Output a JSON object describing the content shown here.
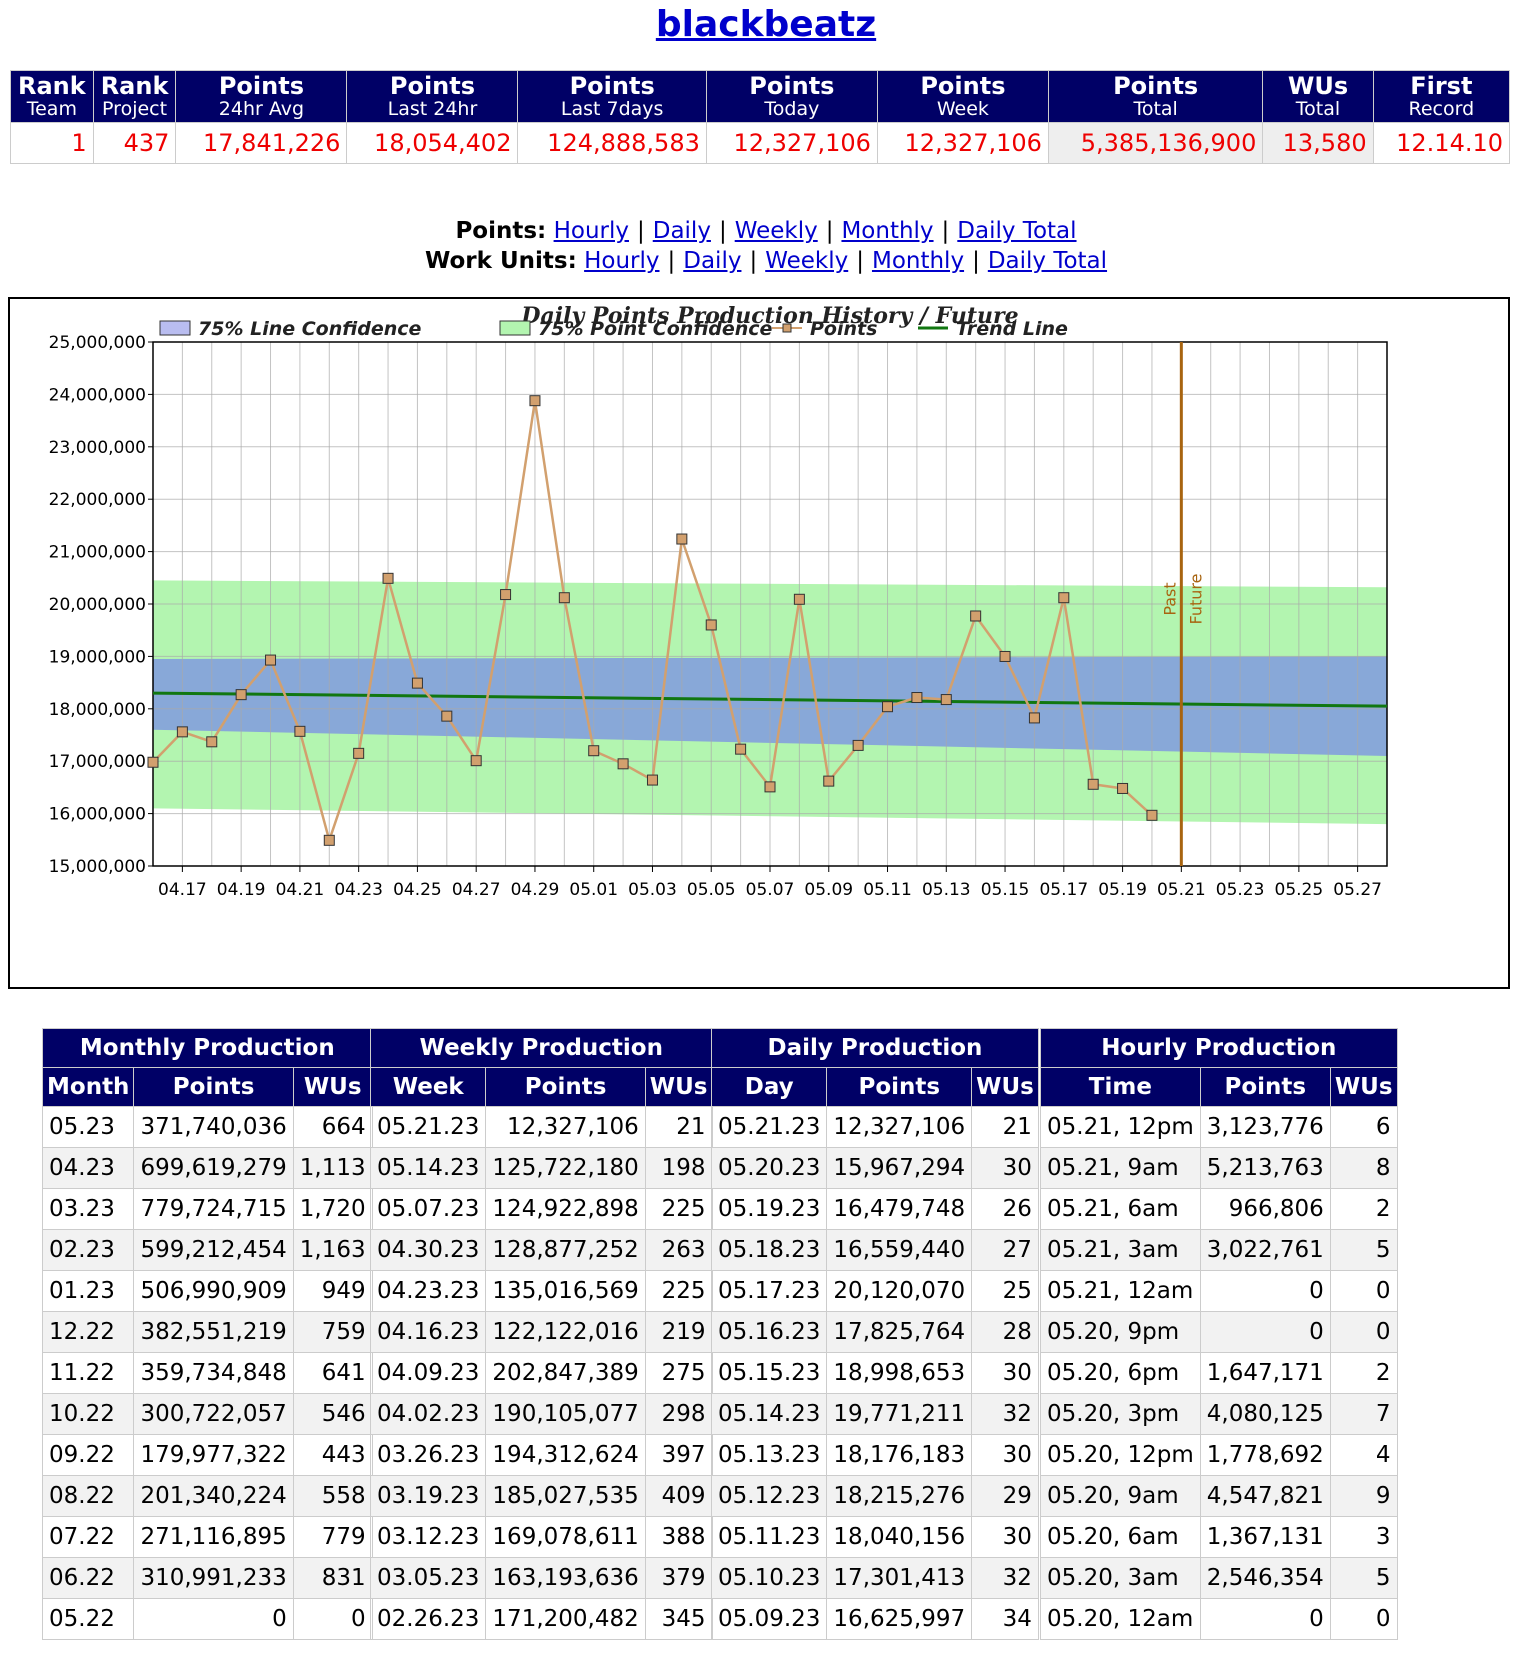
{
  "page": {
    "title": "blackbeatz"
  },
  "summary": {
    "headers": [
      [
        "Rank",
        "Team"
      ],
      [
        "Rank",
        "Project"
      ],
      [
        "Points",
        "24hr Avg"
      ],
      [
        "Points",
        "Last 24hr"
      ],
      [
        "Points",
        "Last 7days"
      ],
      [
        "Points",
        "Today"
      ],
      [
        "Points",
        "Week"
      ],
      [
        "Points",
        "Total"
      ],
      [
        "WUs",
        "Total"
      ],
      [
        "First",
        "Record"
      ]
    ],
    "values": [
      "1",
      "437",
      "17,841,226",
      "18,054,402",
      "124,888,583",
      "12,327,106",
      "12,327,106",
      "5,385,136,900",
      "13,580",
      "12.14.10"
    ]
  },
  "nav": {
    "points_label": "Points:",
    "wu_label": "Work Units:",
    "sep": "|",
    "links": [
      "Hourly",
      "Daily",
      "Weekly",
      "Monthly",
      "Daily Total"
    ]
  },
  "chart_data": {
    "type": "line",
    "title": "Daily Points Production History / Future",
    "legend": [
      "75% Line Confidence",
      "75% Point Confidence",
      "Points",
      "Trend Line"
    ],
    "legend_position": "top",
    "x_ticks": [
      "04.17",
      "04.19",
      "04.21",
      "04.23",
      "04.25",
      "04.27",
      "04.29",
      "05.01",
      "05.03",
      "05.05",
      "05.07",
      "05.09",
      "05.11",
      "05.13",
      "05.15",
      "05.17",
      "05.19",
      "05.21",
      "05.23",
      "05.25",
      "05.27"
    ],
    "ylim": [
      15000000,
      25000000
    ],
    "y_ticks": [
      "25,000,000",
      "24,000,000",
      "23,000,000",
      "22,000,000",
      "21,000,000",
      "20,000,000",
      "19,000,000",
      "18,000,000",
      "17,000,000",
      "16,000,000",
      "15,000,000"
    ],
    "grid": true,
    "x_start": "04.16",
    "x_end": "05.28",
    "series": [
      {
        "name": "Points",
        "color": "#d2a06e",
        "x": [
          "04.16",
          "04.17",
          "04.18",
          "04.19",
          "04.20",
          "04.21",
          "04.22",
          "04.23",
          "04.24",
          "04.25",
          "04.26",
          "04.27",
          "04.28",
          "04.29",
          "04.30",
          "05.01",
          "05.02",
          "05.03",
          "05.04",
          "05.05",
          "05.06",
          "05.07",
          "05.08",
          "05.09",
          "05.10",
          "05.11",
          "05.12",
          "05.13",
          "05.14",
          "05.15",
          "05.16",
          "05.17",
          "05.18",
          "05.19",
          "05.20"
        ],
        "values": [
          16980000,
          17560000,
          17370000,
          18270000,
          18930000,
          17570000,
          15490000,
          17150000,
          20490000,
          18490000,
          17860000,
          17010000,
          20180000,
          23880000,
          20120000,
          17200000,
          16950000,
          16640000,
          21240000,
          19600000,
          17230000,
          16510000,
          20090000,
          16620000,
          17301413,
          18040156,
          18215276,
          18176183,
          19771211,
          18998653,
          17825764,
          20120070,
          16559440,
          16479748,
          15967294
        ]
      },
      {
        "name": "Trend Line",
        "color": "#117711",
        "x": [
          "04.16",
          "05.28"
        ],
        "values": [
          18300000,
          18050000
        ]
      }
    ],
    "bands": {
      "point_confidence": {
        "color": "#b3f5b0",
        "upper": [
          20450000,
          20320000
        ],
        "lower": [
          16100000,
          15800000
        ]
      },
      "line_confidence": {
        "color": "#88a8d8",
        "upper": [
          18950000,
          19000000
        ],
        "lower": [
          17600000,
          17100000
        ]
      }
    },
    "divider": {
      "x": "05.21",
      "past_label": "Past",
      "future_label": "Future",
      "color": "#a86410"
    }
  },
  "tables": {
    "monthly": {
      "title": "Monthly Production",
      "columns": [
        "Month",
        "Points",
        "WUs"
      ],
      "rows": [
        [
          "05.23",
          "371,740,036",
          "664"
        ],
        [
          "04.23",
          "699,619,279",
          "1,113"
        ],
        [
          "03.23",
          "779,724,715",
          "1,720"
        ],
        [
          "02.23",
          "599,212,454",
          "1,163"
        ],
        [
          "01.23",
          "506,990,909",
          "949"
        ],
        [
          "12.22",
          "382,551,219",
          "759"
        ],
        [
          "11.22",
          "359,734,848",
          "641"
        ],
        [
          "10.22",
          "300,722,057",
          "546"
        ],
        [
          "09.22",
          "179,977,322",
          "443"
        ],
        [
          "08.22",
          "201,340,224",
          "558"
        ],
        [
          "07.22",
          "271,116,895",
          "779"
        ],
        [
          "06.22",
          "310,991,233",
          "831"
        ],
        [
          "05.22",
          "0",
          "0"
        ]
      ]
    },
    "weekly": {
      "title": "Weekly Production",
      "columns": [
        "Week",
        "Points",
        "WUs"
      ],
      "rows": [
        [
          "05.21.23",
          "12,327,106",
          "21"
        ],
        [
          "05.14.23",
          "125,722,180",
          "198"
        ],
        [
          "05.07.23",
          "124,922,898",
          "225"
        ],
        [
          "04.30.23",
          "128,877,252",
          "263"
        ],
        [
          "04.23.23",
          "135,016,569",
          "225"
        ],
        [
          "04.16.23",
          "122,122,016",
          "219"
        ],
        [
          "04.09.23",
          "202,847,389",
          "275"
        ],
        [
          "04.02.23",
          "190,105,077",
          "298"
        ],
        [
          "03.26.23",
          "194,312,624",
          "397"
        ],
        [
          "03.19.23",
          "185,027,535",
          "409"
        ],
        [
          "03.12.23",
          "169,078,611",
          "388"
        ],
        [
          "03.05.23",
          "163,193,636",
          "379"
        ],
        [
          "02.26.23",
          "171,200,482",
          "345"
        ]
      ]
    },
    "daily": {
      "title": "Daily Production",
      "columns": [
        "Day",
        "Points",
        "WUs"
      ],
      "rows": [
        [
          "05.21.23",
          "12,327,106",
          "21"
        ],
        [
          "05.20.23",
          "15,967,294",
          "30"
        ],
        [
          "05.19.23",
          "16,479,748",
          "26"
        ],
        [
          "05.18.23",
          "16,559,440",
          "27"
        ],
        [
          "05.17.23",
          "20,120,070",
          "25"
        ],
        [
          "05.16.23",
          "17,825,764",
          "28"
        ],
        [
          "05.15.23",
          "18,998,653",
          "30"
        ],
        [
          "05.14.23",
          "19,771,211",
          "32"
        ],
        [
          "05.13.23",
          "18,176,183",
          "30"
        ],
        [
          "05.12.23",
          "18,215,276",
          "29"
        ],
        [
          "05.11.23",
          "18,040,156",
          "30"
        ],
        [
          "05.10.23",
          "17,301,413",
          "32"
        ],
        [
          "05.09.23",
          "16,625,997",
          "34"
        ]
      ]
    },
    "hourly": {
      "title": "Hourly Production",
      "columns": [
        "Time",
        "Points",
        "WUs"
      ],
      "rows": [
        [
          "05.21, 12pm",
          "3,123,776",
          "6"
        ],
        [
          "05.21, 9am",
          "5,213,763",
          "8"
        ],
        [
          "05.21, 6am",
          "966,806",
          "2"
        ],
        [
          "05.21, 3am",
          "3,022,761",
          "5"
        ],
        [
          "05.21, 12am",
          "0",
          "0"
        ],
        [
          "05.20, 9pm",
          "0",
          "0"
        ],
        [
          "05.20, 6pm",
          "1,647,171",
          "2"
        ],
        [
          "05.20, 3pm",
          "4,080,125",
          "7"
        ],
        [
          "05.20, 12pm",
          "1,778,692",
          "4"
        ],
        [
          "05.20, 9am",
          "4,547,821",
          "9"
        ],
        [
          "05.20, 6am",
          "1,367,131",
          "3"
        ],
        [
          "05.20, 3am",
          "2,546,354",
          "5"
        ],
        [
          "05.20, 12am",
          "0",
          "0"
        ]
      ]
    }
  }
}
